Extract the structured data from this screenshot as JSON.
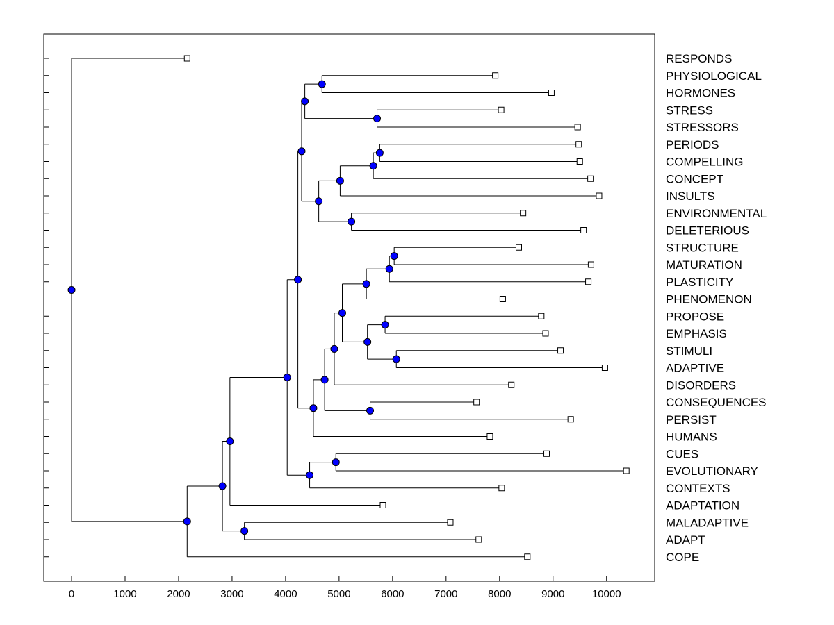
{
  "chart_data": {
    "type": "dendrogram",
    "title": "",
    "xlabel": "",
    "ylabel": "",
    "xlim": [
      -520,
      10900
    ],
    "x_ticks": [
      0,
      1000,
      2000,
      3000,
      4000,
      5000,
      6000,
      7000,
      8000,
      9000,
      10000
    ],
    "x_tick_labels": [
      "0",
      "1000",
      "2000",
      "3000",
      "4000",
      "5000",
      "6000",
      "7000",
      "8000",
      "9000",
      "10000"
    ],
    "grid": false,
    "colors": {
      "internal_node": "#0000ff",
      "line": "#000000",
      "leaf_fill": "#ffffff"
    },
    "leaves": [
      {
        "label": "RESPONDS",
        "value": 2160
      },
      {
        "label": "PHYSIOLOGICAL",
        "value": 7920
      },
      {
        "label": "HORMONES",
        "value": 8970
      },
      {
        "label": "STRESS",
        "value": 8030
      },
      {
        "label": "STRESSORS",
        "value": 9460
      },
      {
        "label": "PERIODS",
        "value": 9480
      },
      {
        "label": "COMPELLING",
        "value": 9500
      },
      {
        "label": "CONCEPT",
        "value": 9700
      },
      {
        "label": "INSULTS",
        "value": 9860
      },
      {
        "label": "ENVIRONMENTAL",
        "value": 8440
      },
      {
        "label": "DELETERIOUS",
        "value": 9570
      },
      {
        "label": "STRUCTURE",
        "value": 8360
      },
      {
        "label": "MATURATION",
        "value": 9710
      },
      {
        "label": "PLASTICITY",
        "value": 9660
      },
      {
        "label": "PHENOMENON",
        "value": 8060
      },
      {
        "label": "PROPOSE",
        "value": 8780
      },
      {
        "label": "EMPHASIS",
        "value": 8860
      },
      {
        "label": "STIMULI",
        "value": 9140
      },
      {
        "label": "ADAPTIVE",
        "value": 9970
      },
      {
        "label": "DISORDERS",
        "value": 8220
      },
      {
        "label": "CONSEQUENCES",
        "value": 7570
      },
      {
        "label": "PERSIST",
        "value": 9330
      },
      {
        "label": "HUMANS",
        "value": 7820
      },
      {
        "label": "CUES",
        "value": 8880
      },
      {
        "label": "EVOLUTIONARY",
        "value": 10370
      },
      {
        "label": "CONTEXTS",
        "value": 8040
      },
      {
        "label": "ADAPTATION",
        "value": 5820
      },
      {
        "label": "MALADAPTIVE",
        "value": 7080
      },
      {
        "label": "ADAPT",
        "value": 7610
      },
      {
        "label": "COPE",
        "value": 8520
      }
    ],
    "merges": [
      {
        "id": "n_phys_horm",
        "value": 4680,
        "children": [
          "L1",
          "L2"
        ]
      },
      {
        "id": "n_stress",
        "value": 5710,
        "children": [
          "L3",
          "L4"
        ]
      },
      {
        "id": "n_upper_a",
        "value": 4360,
        "children": [
          "n_phys_horm",
          "n_stress"
        ]
      },
      {
        "id": "n_per_comp",
        "value": 5760,
        "children": [
          "L5",
          "L6"
        ]
      },
      {
        "id": "n_pcc",
        "value": 5640,
        "children": [
          "n_per_comp",
          "L7"
        ]
      },
      {
        "id": "n_pcci",
        "value": 5020,
        "children": [
          "n_pcc",
          "L8"
        ]
      },
      {
        "id": "n_env_del",
        "value": 5230,
        "children": [
          "L9",
          "L10"
        ]
      },
      {
        "id": "n_upper_b",
        "value": 4620,
        "children": [
          "n_pcci",
          "n_env_del"
        ]
      },
      {
        "id": "n_upper",
        "value": 4300,
        "children": [
          "n_upper_a",
          "n_upper_b"
        ]
      },
      {
        "id": "n_str_mat",
        "value": 6030,
        "children": [
          "L11",
          "L12"
        ]
      },
      {
        "id": "n_smp",
        "value": 5940,
        "children": [
          "n_str_mat",
          "L13"
        ]
      },
      {
        "id": "n_smpp",
        "value": 5510,
        "children": [
          "n_smp",
          "L14"
        ]
      },
      {
        "id": "n_prop_emph",
        "value": 5860,
        "children": [
          "L15",
          "L16"
        ]
      },
      {
        "id": "n_stim_adapt",
        "value": 6070,
        "children": [
          "L17",
          "L18"
        ]
      },
      {
        "id": "n_pe_sa",
        "value": 5530,
        "children": [
          "n_prop_emph",
          "n_stim_adapt"
        ]
      },
      {
        "id": "n_mid_a",
        "value": 5060,
        "children": [
          "n_smpp",
          "n_pe_sa"
        ]
      },
      {
        "id": "n_mid_b",
        "value": 4910,
        "children": [
          "n_mid_a",
          "L19"
        ]
      },
      {
        "id": "n_cons_pers",
        "value": 5580,
        "children": [
          "L20",
          "L21"
        ]
      },
      {
        "id": "n_mid_c",
        "value": 4730,
        "children": [
          "n_mid_b",
          "n_cons_pers"
        ]
      },
      {
        "id": "n_mid_d",
        "value": 4520,
        "children": [
          "n_mid_c",
          "L22"
        ]
      },
      {
        "id": "n_big",
        "value": 4230,
        "children": [
          "n_upper",
          "n_mid_d"
        ]
      },
      {
        "id": "n_cues_evo",
        "value": 4940,
        "children": [
          "L23",
          "L24"
        ]
      },
      {
        "id": "n_cec",
        "value": 4450,
        "children": [
          "n_cues_evo",
          "L25"
        ]
      },
      {
        "id": "n_main",
        "value": 4030,
        "children": [
          "n_big",
          "n_cec"
        ]
      },
      {
        "id": "n_main_adpt",
        "value": 2960,
        "children": [
          "n_main",
          "L26"
        ]
      },
      {
        "id": "n_mal_adapt",
        "value": 3230,
        "children": [
          "L27",
          "L28"
        ]
      },
      {
        "id": "n_lower_a",
        "value": 2820,
        "children": [
          "n_main_adpt",
          "n_mal_adapt"
        ]
      },
      {
        "id": "n_lower",
        "value": 2160,
        "children": [
          "n_lower_a",
          "L29"
        ]
      },
      {
        "id": "n_root",
        "value": 0,
        "children": [
          "L0",
          "n_lower"
        ]
      }
    ]
  }
}
